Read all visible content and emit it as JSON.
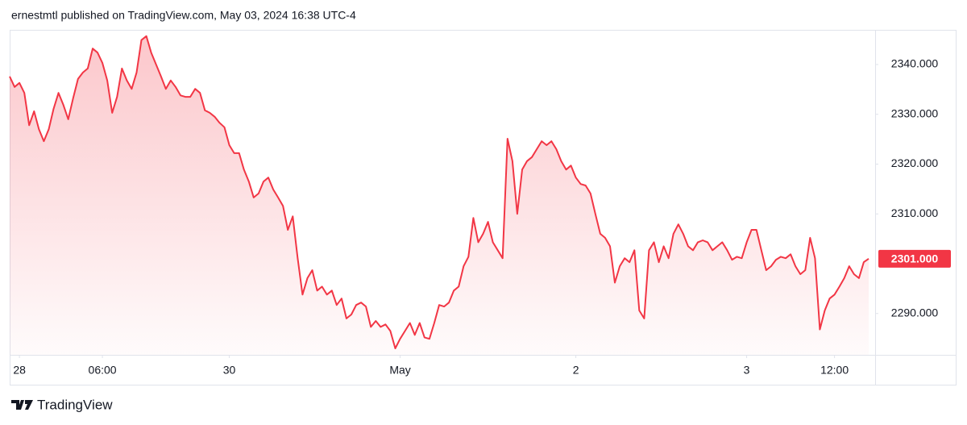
{
  "header": {
    "text": "ernestmtl published on TradingView.com, May 03, 2024 16:38 UTC-4"
  },
  "chart_data": {
    "type": "area",
    "color": "#f23645",
    "values": [
      2337.6,
      2335.5,
      2336.3,
      2334.3,
      2327.8,
      2330.6,
      2327.0,
      2324.6,
      2327.0,
      2331.1,
      2334.3,
      2331.9,
      2329.0,
      2333.2,
      2337.1,
      2338.4,
      2339.2,
      2343.2,
      2342.4,
      2340.3,
      2336.8,
      2330.3,
      2333.5,
      2339.2,
      2336.8,
      2335.1,
      2338.4,
      2344.9,
      2345.7,
      2342.4,
      2340.0,
      2337.6,
      2335.1,
      2336.8,
      2335.5,
      2333.8,
      2333.5,
      2333.5,
      2335.1,
      2334.3,
      2330.8,
      2330.3,
      2329.5,
      2328.3,
      2327.4,
      2323.8,
      2322.2,
      2322.2,
      2318.9,
      2316.5,
      2313.3,
      2314.1,
      2316.5,
      2317.3,
      2314.9,
      2313.3,
      2311.6,
      2306.8,
      2309.5,
      2301.1,
      2293.8,
      2297.1,
      2298.7,
      2294.6,
      2295.4,
      2293.8,
      2294.6,
      2291.7,
      2293.0,
      2289.0,
      2289.8,
      2291.7,
      2292.2,
      2291.4,
      2287.3,
      2288.5,
      2287.3,
      2287.8,
      2286.5,
      2283.0,
      2284.9,
      2286.5,
      2288.1,
      2285.7,
      2288.1,
      2285.2,
      2284.9,
      2288.1,
      2291.7,
      2291.4,
      2292.2,
      2294.6,
      2295.4,
      2299.5,
      2301.4,
      2309.2,
      2304.3,
      2306.0,
      2308.4,
      2304.3,
      2302.7,
      2301.1,
      2325.1,
      2320.6,
      2310.0,
      2318.9,
      2320.6,
      2321.4,
      2323.0,
      2324.6,
      2323.8,
      2324.6,
      2323.0,
      2320.6,
      2318.9,
      2319.7,
      2317.3,
      2316.0,
      2315.7,
      2314.1,
      2310.0,
      2306.0,
      2305.2,
      2303.5,
      2296.2,
      2299.5,
      2301.1,
      2300.3,
      2302.7,
      2290.6,
      2289.0,
      2302.7,
      2304.3,
      2300.3,
      2303.5,
      2301.1,
      2306.0,
      2307.9,
      2306.0,
      2303.5,
      2302.7,
      2304.3,
      2304.7,
      2304.3,
      2302.7,
      2303.5,
      2304.3,
      2302.7,
      2300.8,
      2301.4,
      2301.1,
      2304.3,
      2306.8,
      2306.8,
      2302.7,
      2298.7,
      2299.5,
      2300.8,
      2301.4,
      2301.1,
      2301.9,
      2299.5,
      2297.9,
      2298.7,
      2305.2,
      2301.1,
      2286.8,
      2290.6,
      2293.0,
      2293.8,
      2295.4,
      2297.1,
      2299.5,
      2297.9,
      2297.1,
      2300.3,
      2301.0
    ],
    "last_value_label": "2301.000",
    "xlim": [
      0,
      176
    ],
    "xticks": [
      {
        "value": 2,
        "label": "28"
      },
      {
        "value": 19,
        "label": "06:00"
      },
      {
        "value": 45,
        "label": "30"
      },
      {
        "value": 80,
        "label": "May"
      },
      {
        "value": 116,
        "label": "2"
      },
      {
        "value": 151,
        "label": "3"
      },
      {
        "value": 169,
        "label": "12:00"
      }
    ],
    "ylim": [
      2281.7,
      2346.8
    ],
    "yticks": [
      {
        "value": 2290,
        "label": "2290.000"
      },
      {
        "value": 2310,
        "label": "2310.000"
      },
      {
        "value": 2320,
        "label": "2320.000"
      },
      {
        "value": 2330,
        "label": "2330.000"
      },
      {
        "value": 2340,
        "label": "2340.000"
      }
    ],
    "grid": false
  },
  "footer": {
    "brand": "TradingView"
  }
}
